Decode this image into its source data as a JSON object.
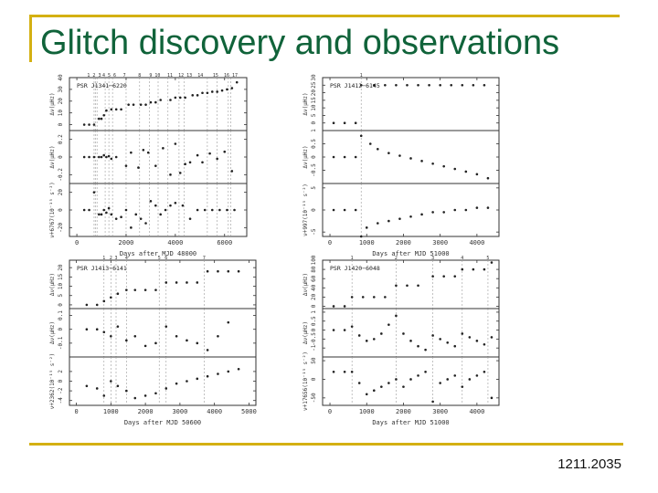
{
  "slide": {
    "title": "Glitch discovery and observations",
    "footer": "1211.2035",
    "colors": {
      "title": "#10633a",
      "frame": "#d4b012",
      "points": "#222222",
      "glitch_lines": "#9a9a9a"
    }
  },
  "chart_data": [
    {
      "type": "scatter",
      "pulsar": "PSR J1341−6220",
      "xlabel": "Days after MJD 48000",
      "xlim": [
        -300,
        6900
      ],
      "xticks": [
        0,
        2000,
        4000,
        6000
      ],
      "glitch_labels": [
        "1 2 3",
        "4 5 6",
        "7",
        "8",
        "9 10",
        "11",
        "12 13",
        "14",
        "15",
        "16 17"
      ],
      "glitch_x": [
        700,
        760,
        820,
        1150,
        1300,
        1450,
        2000,
        2550,
        2950,
        3300,
        3700,
        4150,
        4350,
        5300,
        5700,
        6150,
        6250
      ],
      "panels": [
        {
          "ylabel": "Δν(μHz)",
          "ylim": [
            -5,
            40
          ],
          "yticks": [
            0,
            10,
            20,
            30,
            40
          ],
          "x": [
            300,
            500,
            700,
            900,
            1000,
            1100,
            1200,
            1400,
            1600,
            1800,
            2100,
            2300,
            2600,
            2800,
            3000,
            3200,
            3400,
            3800,
            4000,
            4200,
            4400,
            4700,
            4900,
            5100,
            5300,
            5500,
            5700,
            5900,
            6100,
            6300,
            6500
          ],
          "y": [
            0,
            0,
            0,
            5,
            5,
            8,
            12,
            13,
            13,
            13,
            17,
            17,
            17,
            17,
            19,
            19,
            21,
            21,
            23,
            23,
            23,
            25,
            25,
            27,
            27,
            28,
            28,
            29,
            30,
            31,
            36
          ]
        },
        {
          "ylabel": "Δν(μHz)",
          "ylim": [
            -0.3,
            0.3
          ],
          "yticks": [
            -0.2,
            0,
            0.2
          ],
          "x": [
            300,
            500,
            700,
            900,
            1000,
            1100,
            1200,
            1300,
            1400,
            1600,
            2000,
            2200,
            2500,
            2700,
            2900,
            3200,
            3500,
            3800,
            4000,
            4200,
            4400,
            4600,
            4900,
            5100,
            5400,
            5700,
            6000,
            6300
          ],
          "y": [
            0,
            0,
            0,
            0,
            0,
            0.02,
            0,
            0.01,
            -0.02,
            0,
            -0.1,
            0.05,
            -0.12,
            0.08,
            0.05,
            -0.1,
            0.1,
            -0.2,
            0.15,
            -0.18,
            -0.08,
            -0.06,
            0.02,
            -0.06,
            0.04,
            -0.02,
            0.06,
            -0.16
          ]
        },
        {
          "ylabel": "ν̇+6767(10⁻¹⁵ s⁻²)",
          "ylim": [
            -30,
            30
          ],
          "yticks": [
            -20,
            0,
            20
          ],
          "x": [
            300,
            500,
            700,
            900,
            1000,
            1100,
            1200,
            1300,
            1400,
            1600,
            1800,
            2000,
            2200,
            2400,
            2600,
            2800,
            3000,
            3200,
            3400,
            3600,
            3800,
            4000,
            4300,
            4600,
            4900,
            5200,
            5500,
            5800,
            6100,
            6400
          ],
          "y": [
            0,
            0,
            20,
            -5,
            -5,
            0,
            -3,
            2,
            -5,
            -10,
            -8,
            0,
            -20,
            -5,
            -10,
            -15,
            10,
            5,
            -5,
            0,
            5,
            8,
            5,
            -10,
            0,
            0,
            0,
            0,
            0,
            0
          ]
        }
      ]
    },
    {
      "type": "scatter",
      "pulsar": "PSR J1412−6145",
      "xlabel": "Days after MJD 51000",
      "xlim": [
        -200,
        4600
      ],
      "xticks": [
        0,
        1000,
        2000,
        3000,
        4000
      ],
      "glitch_labels": [
        "1"
      ],
      "glitch_x": [
        850
      ],
      "panels": [
        {
          "ylabel": "Δν(μHz)",
          "ylim": [
            -5,
            30
          ],
          "yticks": [
            0,
            5,
            10,
            15,
            20,
            25,
            30
          ],
          "x": [
            100,
            400,
            700,
            850,
            1200,
            1500,
            1800,
            2100,
            2400,
            2700,
            3000,
            3300,
            3600,
            3900,
            4200
          ],
          "y": [
            0,
            0,
            0,
            25,
            25,
            25,
            25,
            25,
            25,
            25,
            25,
            25,
            25,
            25,
            25
          ]
        },
        {
          "ylabel": "Δν(μHz)",
          "ylim": [
            -1,
            1
          ],
          "yticks": [
            -0.5,
            0,
            0.5,
            1
          ],
          "x": [
            100,
            400,
            700,
            850,
            1100,
            1300,
            1600,
            1900,
            2200,
            2500,
            2800,
            3100,
            3400,
            3700,
            4000,
            4300
          ],
          "y": [
            0,
            0,
            0,
            0.8,
            0.5,
            0.3,
            0.15,
            0.05,
            -0.05,
            -0.15,
            -0.25,
            -0.35,
            -0.45,
            -0.55,
            -0.65,
            -0.8
          ]
        },
        {
          "ylabel": "ν̇+997(10⁻¹⁵ s⁻²)",
          "ylim": [
            -6,
            6
          ],
          "yticks": [
            -5,
            0,
            5
          ],
          "x": [
            100,
            400,
            700,
            850,
            1000,
            1300,
            1600,
            1900,
            2200,
            2500,
            2800,
            3100,
            3400,
            3700,
            4000,
            4300
          ],
          "y": [
            0,
            0,
            0,
            -6,
            -4,
            -3,
            -2.5,
            -2,
            -1.5,
            -1,
            -0.5,
            -0.5,
            0,
            0,
            0.5,
            0.5
          ]
        }
      ]
    },
    {
      "type": "scatter",
      "pulsar": "PSR J1413−6141",
      "xlabel": "Days after MJD 50600",
      "xlim": [
        -200,
        5200
      ],
      "xticks": [
        0,
        1000,
        2000,
        3000,
        4000,
        5000
      ],
      "glitch_labels": [
        "1",
        "2",
        "3",
        "4",
        "5",
        "6",
        "7"
      ],
      "glitch_x": [
        800,
        1000,
        1150,
        1450,
        2400,
        2600,
        3700
      ],
      "panels": [
        {
          "ylabel": "Δν(μHz)",
          "ylim": [
            -2,
            24
          ],
          "yticks": [
            0,
            5,
            10,
            15,
            20
          ],
          "x": [
            300,
            600,
            800,
            1000,
            1200,
            1450,
            1700,
            2000,
            2300,
            2600,
            2900,
            3200,
            3500,
            3800,
            4100,
            4400,
            4700
          ],
          "y": [
            0,
            0,
            2,
            4,
            6,
            8,
            8,
            8,
            8,
            12,
            12,
            12,
            12,
            18,
            18,
            18,
            18
          ]
        },
        {
          "ylabel": "Δν(μHz)",
          "ylim": [
            -0.2,
            0.15
          ],
          "yticks": [
            -0.1,
            0,
            0.1
          ],
          "x": [
            300,
            600,
            800,
            1000,
            1200,
            1450,
            1700,
            2000,
            2300,
            2600,
            2900,
            3200,
            3500,
            3800,
            4100,
            4400
          ],
          "y": [
            0,
            0,
            -0.02,
            -0.05,
            0.02,
            -0.08,
            -0.05,
            -0.12,
            -0.1,
            0.02,
            -0.05,
            -0.08,
            -0.1,
            -0.15,
            -0.05,
            0.05
          ]
        },
        {
          "ylabel": "ν̇+2362(10⁻¹⁵ s⁻²)",
          "ylim": [
            -5,
            5
          ],
          "yticks": [
            -4,
            -2,
            0,
            2
          ],
          "x": [
            300,
            600,
            800,
            1000,
            1200,
            1450,
            1700,
            2000,
            2300,
            2600,
            2900,
            3200,
            3500,
            3800,
            4100,
            4400,
            4700
          ],
          "y": [
            -1,
            -1.5,
            -3,
            0,
            -1,
            -2,
            -3.5,
            -3,
            -2.5,
            -1.5,
            -0.5,
            0,
            0.5,
            1,
            1.5,
            2,
            2.5
          ]
        }
      ]
    },
    {
      "type": "scatter",
      "pulsar": "PSR J1420−6048",
      "xlabel": "Days after MJD 51000",
      "xlim": [
        -200,
        4600
      ],
      "xticks": [
        0,
        1000,
        2000,
        3000,
        4000
      ],
      "glitch_labels": [
        "1",
        "2",
        "3",
        "4",
        "5"
      ],
      "glitch_x": [
        600,
        1800,
        2800,
        3600,
        4300
      ],
      "panels": [
        {
          "ylabel": "Δν(μHz)",
          "ylim": [
            -5,
            100
          ],
          "yticks": [
            0,
            20,
            40,
            60,
            80,
            100
          ],
          "x": [
            100,
            400,
            600,
            900,
            1200,
            1500,
            1800,
            2100,
            2400,
            2800,
            3100,
            3400,
            3600,
            3900,
            4200,
            4400
          ],
          "y": [
            0,
            0,
            20,
            20,
            20,
            20,
            45,
            45,
            45,
            65,
            65,
            65,
            80,
            80,
            80,
            95
          ]
        },
        {
          "ylabel": "Δν(μHz)",
          "ylim": [
            -1.5,
            1.2
          ],
          "yticks": [
            -1,
            -0.5,
            0,
            0.5,
            1
          ],
          "x": [
            100,
            400,
            600,
            800,
            1000,
            1200,
            1400,
            1600,
            1800,
            2000,
            2200,
            2400,
            2600,
            2800,
            3000,
            3200,
            3400,
            3600,
            3800,
            4000,
            4200,
            4400
          ],
          "y": [
            0,
            0,
            0.2,
            -0.3,
            -0.6,
            -0.5,
            -0.2,
            0.3,
            0.8,
            -0.2,
            -0.6,
            -0.9,
            -1.1,
            -0.3,
            -0.5,
            -0.7,
            -0.9,
            -0.2,
            -0.4,
            -0.6,
            -0.8,
            -0.4
          ]
        },
        {
          "ylabel": "ν̇+17656(10⁻¹⁵ s⁻²)",
          "ylim": [
            -70,
            60
          ],
          "yticks": [
            -50,
            0,
            50
          ],
          "x": [
            100,
            400,
            600,
            800,
            1000,
            1200,
            1400,
            1600,
            1800,
            2000,
            2200,
            2400,
            2600,
            2800,
            3000,
            3200,
            3400,
            3600,
            3800,
            4000,
            4200,
            4400
          ],
          "y": [
            20,
            20,
            20,
            -10,
            -40,
            -30,
            -20,
            -10,
            0,
            -20,
            0,
            10,
            20,
            -60,
            -10,
            0,
            10,
            -20,
            0,
            10,
            20,
            -50
          ]
        }
      ]
    }
  ]
}
